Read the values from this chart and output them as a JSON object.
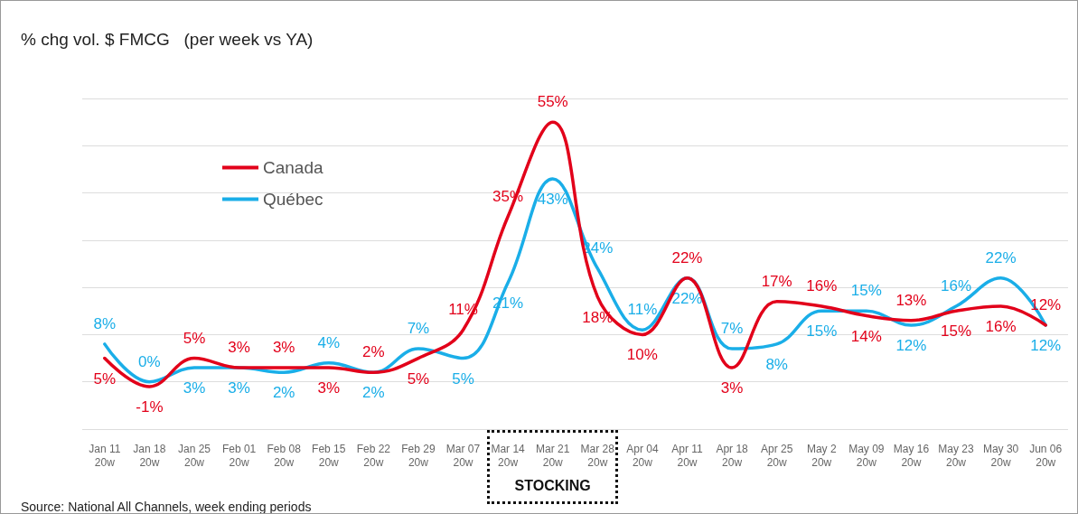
{
  "chart_data": {
    "type": "line",
    "title": "% chg vol. $ FMCG   (per week vs YA)",
    "categories": [
      "Jan 11\n20w",
      "Jan 18\n20w",
      "Jan 25\n20w",
      "Feb 01\n20w",
      "Feb 08\n20w",
      "Feb 15\n20w",
      "Feb 22\n20w",
      "Feb 29\n20w",
      "Mar 07\n20w",
      "Mar 14\n20w",
      "Mar 21\n20w",
      "Mar 28\n20w",
      "Apr 04\n20w",
      "Apr 11\n20w",
      "Apr 18\n20w",
      "Apr 25\n20w",
      "May 2\n20w",
      "May 09\n20w",
      "May 16\n20w",
      "May 23\n20w",
      "May 30\n20w",
      "Jun 06\n20w"
    ],
    "series": [
      {
        "name": "Canada",
        "color": "#e2001a",
        "values": [
          5,
          -1,
          5,
          3,
          3,
          3,
          2,
          5,
          11,
          35,
          55,
          18,
          10,
          22,
          3,
          17,
          16,
          14,
          13,
          15,
          16,
          12
        ],
        "value_labels": [
          "5%",
          "-1%",
          "5%",
          "3%",
          "3%",
          "3%",
          "2%",
          "5%",
          "11%",
          "35%",
          "55%",
          "18%",
          "10%",
          "22%",
          "3%",
          "17%",
          "16%",
          "14%",
          "13%",
          "15%",
          "16%",
          "12%"
        ]
      },
      {
        "name": "Québec",
        "color": "#1aaee8",
        "values": [
          8,
          0,
          3,
          3,
          2,
          4,
          2,
          7,
          5,
          21,
          43,
          24,
          11,
          22,
          7,
          8,
          15,
          15,
          12,
          16,
          22,
          12
        ],
        "value_labels": [
          "8%",
          "0%",
          "3%",
          "3%",
          "2%",
          "4%",
          "2%",
          "7%",
          "5%",
          "21%",
          "43%",
          "24%",
          "11%",
          "22%",
          "7%",
          "8%",
          "15%",
          "15%",
          "12%",
          "16%",
          "22%",
          "12%"
        ]
      }
    ],
    "ylim": [
      -10,
      60
    ],
    "yticks": [
      {
        "value": -10,
        "label": null
      },
      {
        "value": 0,
        "label": null
      },
      {
        "value": 10,
        "label": null
      },
      {
        "value": 20,
        "label": null
      },
      {
        "value": 30,
        "label": null
      },
      {
        "value": 40,
        "label": null
      },
      {
        "value": 50,
        "label": null
      },
      {
        "value": 60,
        "label": null
      }
    ],
    "tick_labels": "x",
    "grid": "y",
    "legend": "top left",
    "marker": "none",
    "line_style": "solid",
    "annotations": [
      "STOCKING",
      "Source: National All Channels, week ending periods"
    ]
  }
}
